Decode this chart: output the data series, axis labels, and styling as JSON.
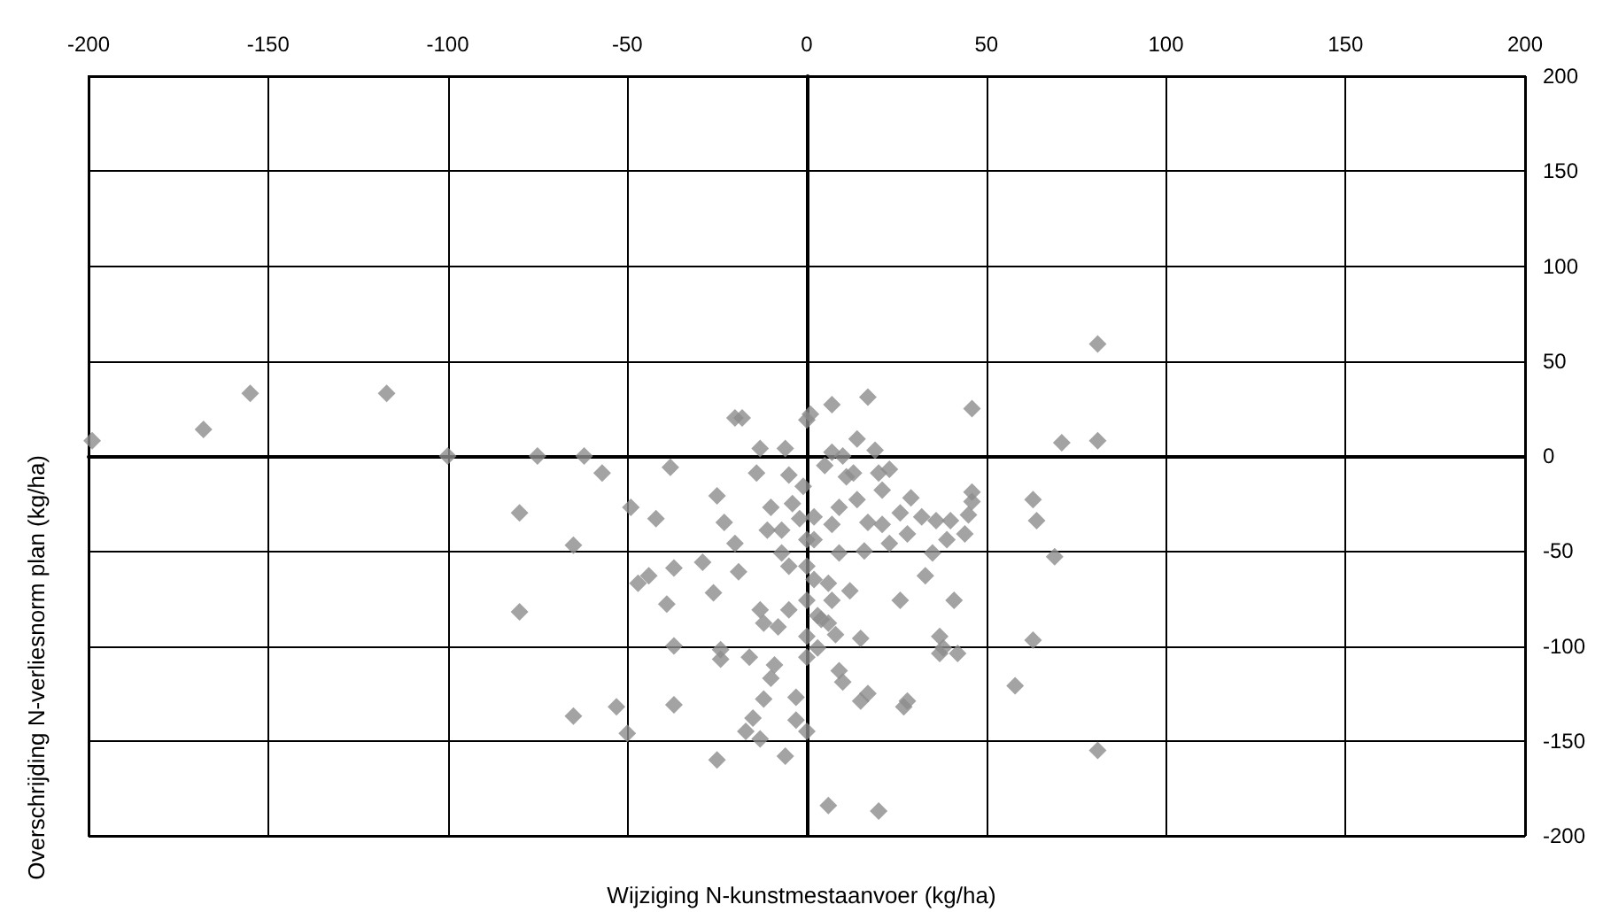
{
  "chart_data": {
    "type": "scatter",
    "xlabel": "Wijziging N-kunstmestaanvoer (kg/ha)",
    "ylabel": "Overschrijding N-verliesnorm plan (kg/ha)",
    "xlim": [
      -200,
      200
    ],
    "ylim": [
      -200,
      200
    ],
    "xticks": [
      -200,
      -150,
      -100,
      -50,
      0,
      50,
      100,
      150,
      200
    ],
    "yticks": [
      -200,
      -150,
      -100,
      -50,
      0,
      50,
      100,
      150,
      200
    ],
    "grid": true,
    "marker": "diamond",
    "series": [
      {
        "color": "#8c8c8c",
        "x": [
          -199,
          -168,
          -155,
          -117,
          -100,
          -75,
          -62,
          -57,
          -80,
          -65,
          -80,
          -65,
          -49,
          -47,
          -44,
          -50,
          -53,
          -42,
          -38,
          -37,
          -39,
          -37,
          -37,
          -29,
          -25,
          -23,
          -26,
          -24,
          -24,
          -25,
          -20,
          -18,
          -20,
          -19,
          -17,
          -16,
          -14,
          -13,
          -11,
          -10,
          -13,
          -12,
          -15,
          -13,
          -12,
          -10,
          -9,
          -8,
          -7,
          -6,
          -7,
          -5,
          -5,
          -3,
          -6,
          -3,
          -5,
          -4,
          -2,
          -1,
          0,
          1,
          0,
          0,
          0,
          0,
          0,
          0,
          2,
          2,
          2,
          3,
          3,
          5,
          4,
          7,
          6,
          7,
          7,
          6,
          9,
          6,
          8,
          9,
          7,
          10,
          9,
          10,
          12,
          11,
          13,
          14,
          14,
          15,
          16,
          17,
          15,
          17,
          17,
          19,
          21,
          20,
          21,
          20,
          23,
          23,
          26,
          26,
          27,
          28,
          28,
          29,
          32,
          33,
          36,
          35,
          37,
          37,
          38,
          39,
          40,
          41,
          42,
          44,
          45,
          46,
          46,
          46,
          63,
          64,
          63,
          58,
          69,
          71,
          81,
          81,
          81
        ],
        "values": [
          8,
          14,
          33,
          33,
          0,
          0,
          0,
          -9,
          -30,
          -47,
          -82,
          -137,
          -27,
          -67,
          -63,
          -146,
          -132,
          -33,
          -6,
          -59,
          -78,
          -100,
          -131,
          -56,
          -21,
          -35,
          -72,
          -102,
          -107,
          -160,
          20,
          20,
          -46,
          -61,
          -145,
          -106,
          -9,
          4,
          -39,
          -27,
          -81,
          -88,
          -138,
          -149,
          -128,
          -117,
          -110,
          -90,
          -39,
          4,
          -51,
          -58,
          -81,
          -139,
          -158,
          -127,
          -10,
          -25,
          -33,
          -16,
          19,
          22,
          -44,
          -58,
          -76,
          -95,
          -106,
          -145,
          -32,
          -44,
          -65,
          -84,
          -101,
          -5,
          -86,
          -36,
          -67,
          -76,
          27,
          -184,
          -51,
          -88,
          -94,
          -27,
          2,
          0,
          -113,
          -119,
          -71,
          -11,
          -9,
          9,
          -23,
          -96,
          -50,
          -35,
          -129,
          -125,
          31,
          3,
          -18,
          -9,
          -36,
          -187,
          -7,
          -46,
          -30,
          -76,
          -132,
          -129,
          -41,
          -22,
          -32,
          -63,
          -34,
          -51,
          -95,
          -104,
          -101,
          -44,
          -34,
          -76,
          -104,
          -41,
          -31,
          -19,
          -24,
          25,
          -23,
          -34,
          -97,
          -121,
          -53,
          7,
          8,
          59,
          -155
        ]
      }
    ]
  }
}
